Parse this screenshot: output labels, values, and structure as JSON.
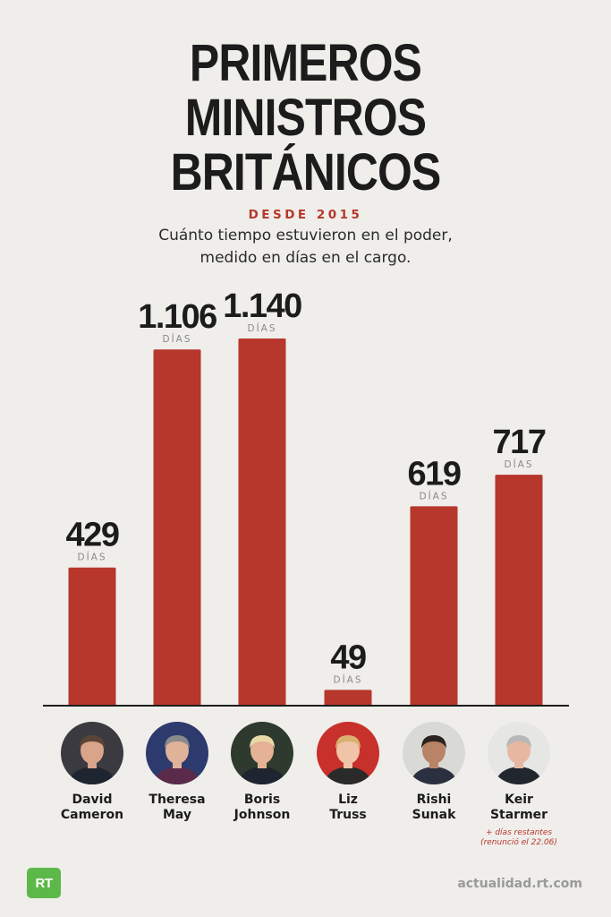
{
  "header": {
    "title_lines": [
      "PRIMEROS",
      "MINISTROS",
      "BRITÁNICOS"
    ],
    "tag": "DESDE 2015",
    "subtitle_lines": [
      "Cuánto tiempo estuvieron en el poder,",
      "medido en días en el cargo."
    ]
  },
  "chart_data": {
    "type": "bar",
    "title": "PRIMEROS MINISTROS BRITÁNICOS",
    "subtitle": "DESDE 2015",
    "categories": [
      "David Cameron",
      "Theresa May",
      "Boris Johnson",
      "Liz Truss",
      "Rishi Sunak",
      "Keir Starmer"
    ],
    "values": [
      429,
      1106,
      1140,
      49,
      619,
      717
    ],
    "value_labels": [
      "429",
      "1.106",
      "1.140",
      "49",
      "619",
      "717"
    ],
    "unit_label": "DÍAS",
    "bar_color": "#b7372c",
    "ylim": [
      0,
      1140
    ],
    "grid": false,
    "axis_labels": false
  },
  "people": [
    {
      "name_lines": [
        "David",
        "Cameron"
      ],
      "avatar_bg": "#3a3a40",
      "skin": "#d8a48a",
      "hair": "#5a4535",
      "clothes": "#1f2530",
      "note_lines": []
    },
    {
      "name_lines": [
        "Theresa",
        "May"
      ],
      "avatar_bg": "#2c3a6e",
      "skin": "#e0b29a",
      "hair": "#8a8a8a",
      "clothes": "#5a2a4a",
      "note_lines": []
    },
    {
      "name_lines": [
        "Boris",
        "Johnson"
      ],
      "avatar_bg": "#2e3a2e",
      "skin": "#e5b295",
      "hair": "#e8d9a8",
      "clothes": "#1e2430",
      "note_lines": []
    },
    {
      "name_lines": [
        "Liz",
        "Truss"
      ],
      "avatar_bg": "#c8302b",
      "skin": "#f0c4a8",
      "hair": "#d9b070",
      "clothes": "#2a2a2a",
      "note_lines": []
    },
    {
      "name_lines": [
        "Rishi",
        "Sunak"
      ],
      "avatar_bg": "#d9d9d6",
      "skin": "#b98366",
      "hair": "#2b2320",
      "clothes": "#2a3040",
      "note_lines": []
    },
    {
      "name_lines": [
        "Keir",
        "Starmer"
      ],
      "avatar_bg": "#e6e6e4",
      "skin": "#e6b8a2",
      "hair": "#b8b8b8",
      "clothes": "#22262e",
      "note_lines": [
        "+ días restantes",
        "(renunció el 22.06)"
      ]
    }
  ],
  "footer": {
    "logo_text": "RT",
    "site": "actualidad.rt.com"
  }
}
